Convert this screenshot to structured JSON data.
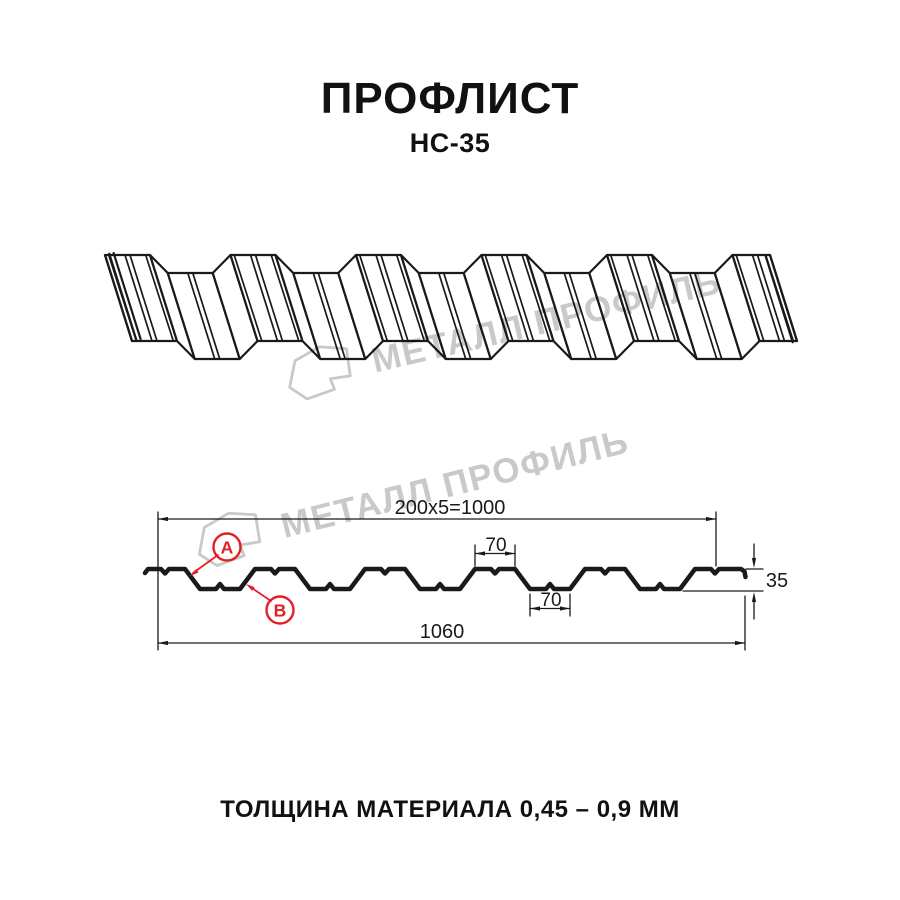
{
  "header": {
    "title": "ПРОФЛИСТ",
    "subtitle": "НС-35"
  },
  "footer": {
    "note": "ТОЛЩИНА МАТЕРИАЛА 0,45 – 0,9 ММ"
  },
  "watermark": {
    "text": "МЕТАЛЛ ПРОФИЛЬ"
  },
  "diagram": {
    "dimensions": {
      "pitch": "200x5=1000",
      "crest_width": "70",
      "valley_width": "70",
      "height": "35",
      "total_width": "1060"
    },
    "labels": {
      "a": "А",
      "b": "В"
    }
  },
  "colors": {
    "accent_red": "#e31e24",
    "line": "#1a1a1a",
    "watermark": "#c9c9c9"
  }
}
